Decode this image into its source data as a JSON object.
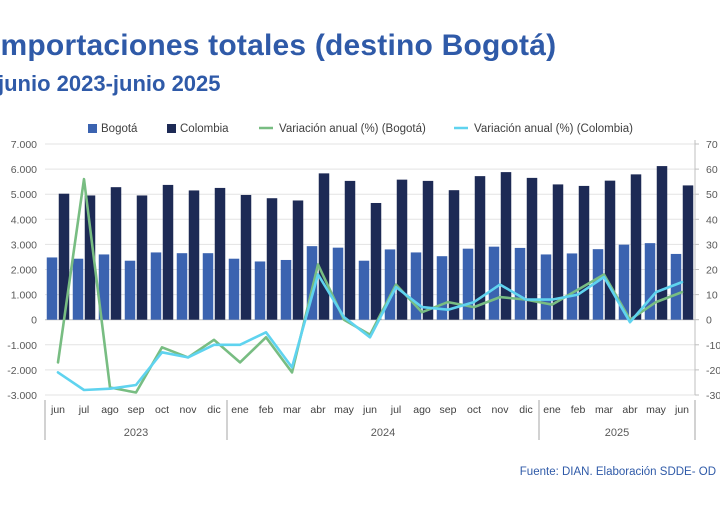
{
  "title": "Importaciones totales (destino Bogotá)",
  "subtitle": "junio 2023-junio 2025",
  "source": "Fuente: DIAN. Elaboración SDDE- OD",
  "chart_data": {
    "type": "bar+line",
    "title": "Importaciones totales (destino Bogotá)",
    "subtitle": "junio 2023-junio 2025",
    "categories": [
      "jun",
      "jul",
      "ago",
      "sep",
      "oct",
      "nov",
      "dic",
      "ene",
      "feb",
      "mar",
      "abr",
      "may",
      "jun",
      "jul",
      "ago",
      "sep",
      "oct",
      "nov",
      "dic",
      "ene",
      "feb",
      "mar",
      "abr",
      "may",
      "jun"
    ],
    "years": [
      {
        "label": "2023",
        "start": 0,
        "end": 6
      },
      {
        "label": "2024",
        "start": 7,
        "end": 18
      },
      {
        "label": "2025",
        "start": 19,
        "end": 24
      }
    ],
    "y_left": {
      "min": -3000,
      "max": 7000,
      "step": 1000,
      "tick_labels": [
        "-3.000",
        "-2.000",
        "-1.000",
        "0",
        "1.000",
        "2.000",
        "3.000",
        "4.000",
        "5.000",
        "6.000",
        "7.000"
      ]
    },
    "y_right": {
      "min": -30,
      "max": 70,
      "step": 10,
      "tick_labels": [
        "-30",
        "-20",
        "-10",
        "0",
        "10",
        "20",
        "30",
        "40",
        "50",
        "60",
        "70"
      ]
    },
    "legend_position": "top",
    "series": [
      {
        "name": "Bogotá",
        "type": "bar",
        "axis": "left",
        "color": "#3b63b0",
        "values": [
          2480,
          2430,
          2600,
          2350,
          2680,
          2650,
          2650,
          2430,
          2320,
          2380,
          2930,
          2870,
          2350,
          2800,
          2680,
          2530,
          2830,
          2910,
          2860,
          2600,
          2640,
          2810,
          2990,
          3050,
          2620
        ]
      },
      {
        "name": "Colombia",
        "type": "bar",
        "axis": "left",
        "color": "#1d2a55",
        "values": [
          5020,
          4950,
          5280,
          4950,
          5370,
          5150,
          5250,
          4970,
          4840,
          4750,
          5830,
          5530,
          4650,
          5580,
          5530,
          5160,
          5720,
          5880,
          5650,
          5390,
          5330,
          5540,
          5790,
          6120,
          5350
        ]
      },
      {
        "name": "Variación anual (%) (Bogotá)",
        "type": "line",
        "axis": "right",
        "color": "#78bd82",
        "values": [
          -17,
          56,
          -27,
          -29,
          -11,
          -15,
          -8,
          -17,
          -7,
          -21,
          22,
          0,
          -6,
          14,
          3,
          7,
          5,
          9,
          8,
          6,
          12,
          18,
          0,
          7,
          11
        ]
      },
      {
        "name": "Variación anual (%) (Colombia)",
        "type": "line",
        "axis": "right",
        "color": "#5fd3ef",
        "values": [
          -21,
          -28,
          -27.5,
          -26,
          -13,
          -15,
          -10,
          -10,
          -5,
          -19,
          18,
          1,
          -7,
          13,
          5,
          4,
          7,
          14,
          8,
          8,
          10,
          17,
          -1,
          11,
          15
        ]
      }
    ]
  }
}
